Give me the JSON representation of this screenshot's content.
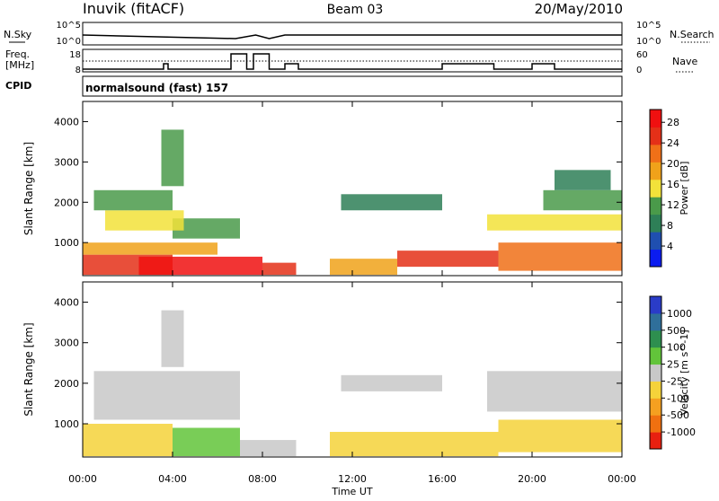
{
  "header": {
    "station": "Inuvik (fitACF)",
    "beam": "Beam 03",
    "date": "20/May/2010"
  },
  "top_panels": {
    "left_labels": [
      "N.Sky",
      "Freq.",
      "[MHz]",
      "CPID"
    ],
    "right_labels": [
      "N.Search",
      "Nave"
    ],
    "nsky_ticks": [
      "10^5",
      "10^0"
    ],
    "nsearch_ticks": [
      "10^5",
      "10^0"
    ],
    "freq_ticks": [
      "18",
      "8"
    ],
    "nave_ticks": [
      "60",
      "0"
    ],
    "cpid_text": "normalsound (fast) 157"
  },
  "colors": {
    "power_scale": [
      "#0b1cf0",
      "#1f4fb0",
      "#2e7f57",
      "#4a9a4a",
      "#f2e23a",
      "#f0a21a",
      "#f07018",
      "#e43018",
      "#f01010"
    ],
    "velocity_scale": [
      "#2a3cc8",
      "#2f6f9a",
      "#2e8f4f",
      "#62c43a",
      "#c8c8c8",
      "#f5d23a",
      "#f5a020",
      "#f07010",
      "#e82010"
    ]
  },
  "chart_data": [
    {
      "type": "heatmap",
      "title": "",
      "xlabel": "",
      "ylabel": "Slant Range [km]",
      "x_ticks": [
        "00:00",
        "04:00",
        "08:00",
        "12:00",
        "16:00",
        "20:00",
        "00:00"
      ],
      "y_ticks": [
        "1000",
        "2000",
        "3000",
        "4000"
      ],
      "xlim": [
        0,
        24
      ],
      "ylim": [
        180,
        4500
      ],
      "colorbar": {
        "label": "Power [dB]",
        "ticks": [
          "4",
          "8",
          "12",
          "16",
          "20",
          "24",
          "28"
        ],
        "range": [
          0,
          30
        ]
      },
      "regions": [
        {
          "t0": 0.0,
          "t1": 4.0,
          "r0": 200,
          "r1": 700,
          "level": 26
        },
        {
          "t0": 0.0,
          "t1": 6.0,
          "r0": 700,
          "r1": 1000,
          "level": 19
        },
        {
          "t0": 2.5,
          "t1": 8.0,
          "r0": 200,
          "r1": 650,
          "level": 27
        },
        {
          "t0": 4.0,
          "t1": 7.0,
          "r0": 1100,
          "r1": 1600,
          "level": 13
        },
        {
          "t0": 8.0,
          "t1": 9.5,
          "r0": 200,
          "r1": 500,
          "level": 24
        },
        {
          "t0": 1.0,
          "t1": 4.5,
          "r0": 1300,
          "r1": 1800,
          "level": 15
        },
        {
          "t0": 0.5,
          "t1": 4.0,
          "r0": 1800,
          "r1": 2300,
          "level": 10
        },
        {
          "t0": 3.5,
          "t1": 4.5,
          "r0": 2400,
          "r1": 3800,
          "level": 12
        },
        {
          "t0": 11.5,
          "t1": 16.0,
          "r0": 1800,
          "r1": 2200,
          "level": 9
        },
        {
          "t0": 14.0,
          "t1": 18.5,
          "r0": 400,
          "r1": 800,
          "level": 25
        },
        {
          "t0": 11.0,
          "t1": 14.0,
          "r0": 200,
          "r1": 600,
          "level": 18
        },
        {
          "t0": 18.5,
          "t1": 24.0,
          "r0": 300,
          "r1": 1000,
          "level": 21
        },
        {
          "t0": 18.0,
          "t1": 24.0,
          "r0": 1300,
          "r1": 1700,
          "level": 14
        },
        {
          "t0": 20.5,
          "t1": 24.0,
          "r0": 1800,
          "r1": 2300,
          "level": 10
        },
        {
          "t0": 21.0,
          "t1": 23.5,
          "r0": 2300,
          "r1": 2800,
          "level": 8
        }
      ]
    },
    {
      "type": "heatmap",
      "title": "",
      "xlabel": "Time UT",
      "ylabel": "Slant Range [km]",
      "x_ticks": [
        "00:00",
        "04:00",
        "08:00",
        "12:00",
        "16:00",
        "20:00",
        "00:00"
      ],
      "y_ticks": [
        "1000",
        "2000",
        "3000",
        "4000"
      ],
      "xlim": [
        0,
        24
      ],
      "ylim": [
        180,
        4500
      ],
      "colorbar": {
        "label": "Velocity [m s^-1]",
        "ticks": [
          "1000",
          "500",
          "100",
          "25",
          "-25",
          "-100",
          "-500",
          "-1000"
        ],
        "range": [
          -1000,
          1000
        ]
      },
      "regions": [
        {
          "t0": 0.0,
          "t1": 4.0,
          "r0": 200,
          "r1": 1000,
          "level": -300
        },
        {
          "t0": 4.0,
          "t1": 7.0,
          "r0": 200,
          "r1": 900,
          "level": 200
        },
        {
          "t0": 7.0,
          "t1": 9.5,
          "r0": 200,
          "r1": 600,
          "level": 80
        },
        {
          "t0": 0.5,
          "t1": 7.0,
          "r0": 1100,
          "r1": 2300,
          "level": 0
        },
        {
          "t0": 3.5,
          "t1": 4.5,
          "r0": 2400,
          "r1": 3800,
          "level": 0
        },
        {
          "t0": 11.5,
          "t1": 16.0,
          "r0": 1800,
          "r1": 2200,
          "level": 0
        },
        {
          "t0": 11.0,
          "t1": 18.5,
          "r0": 200,
          "r1": 800,
          "level": -150
        },
        {
          "t0": 18.5,
          "t1": 24.0,
          "r0": 300,
          "r1": 1100,
          "level": -300
        },
        {
          "t0": 18.0,
          "t1": 24.0,
          "r0": 1300,
          "r1": 2300,
          "level": 0
        }
      ]
    }
  ]
}
